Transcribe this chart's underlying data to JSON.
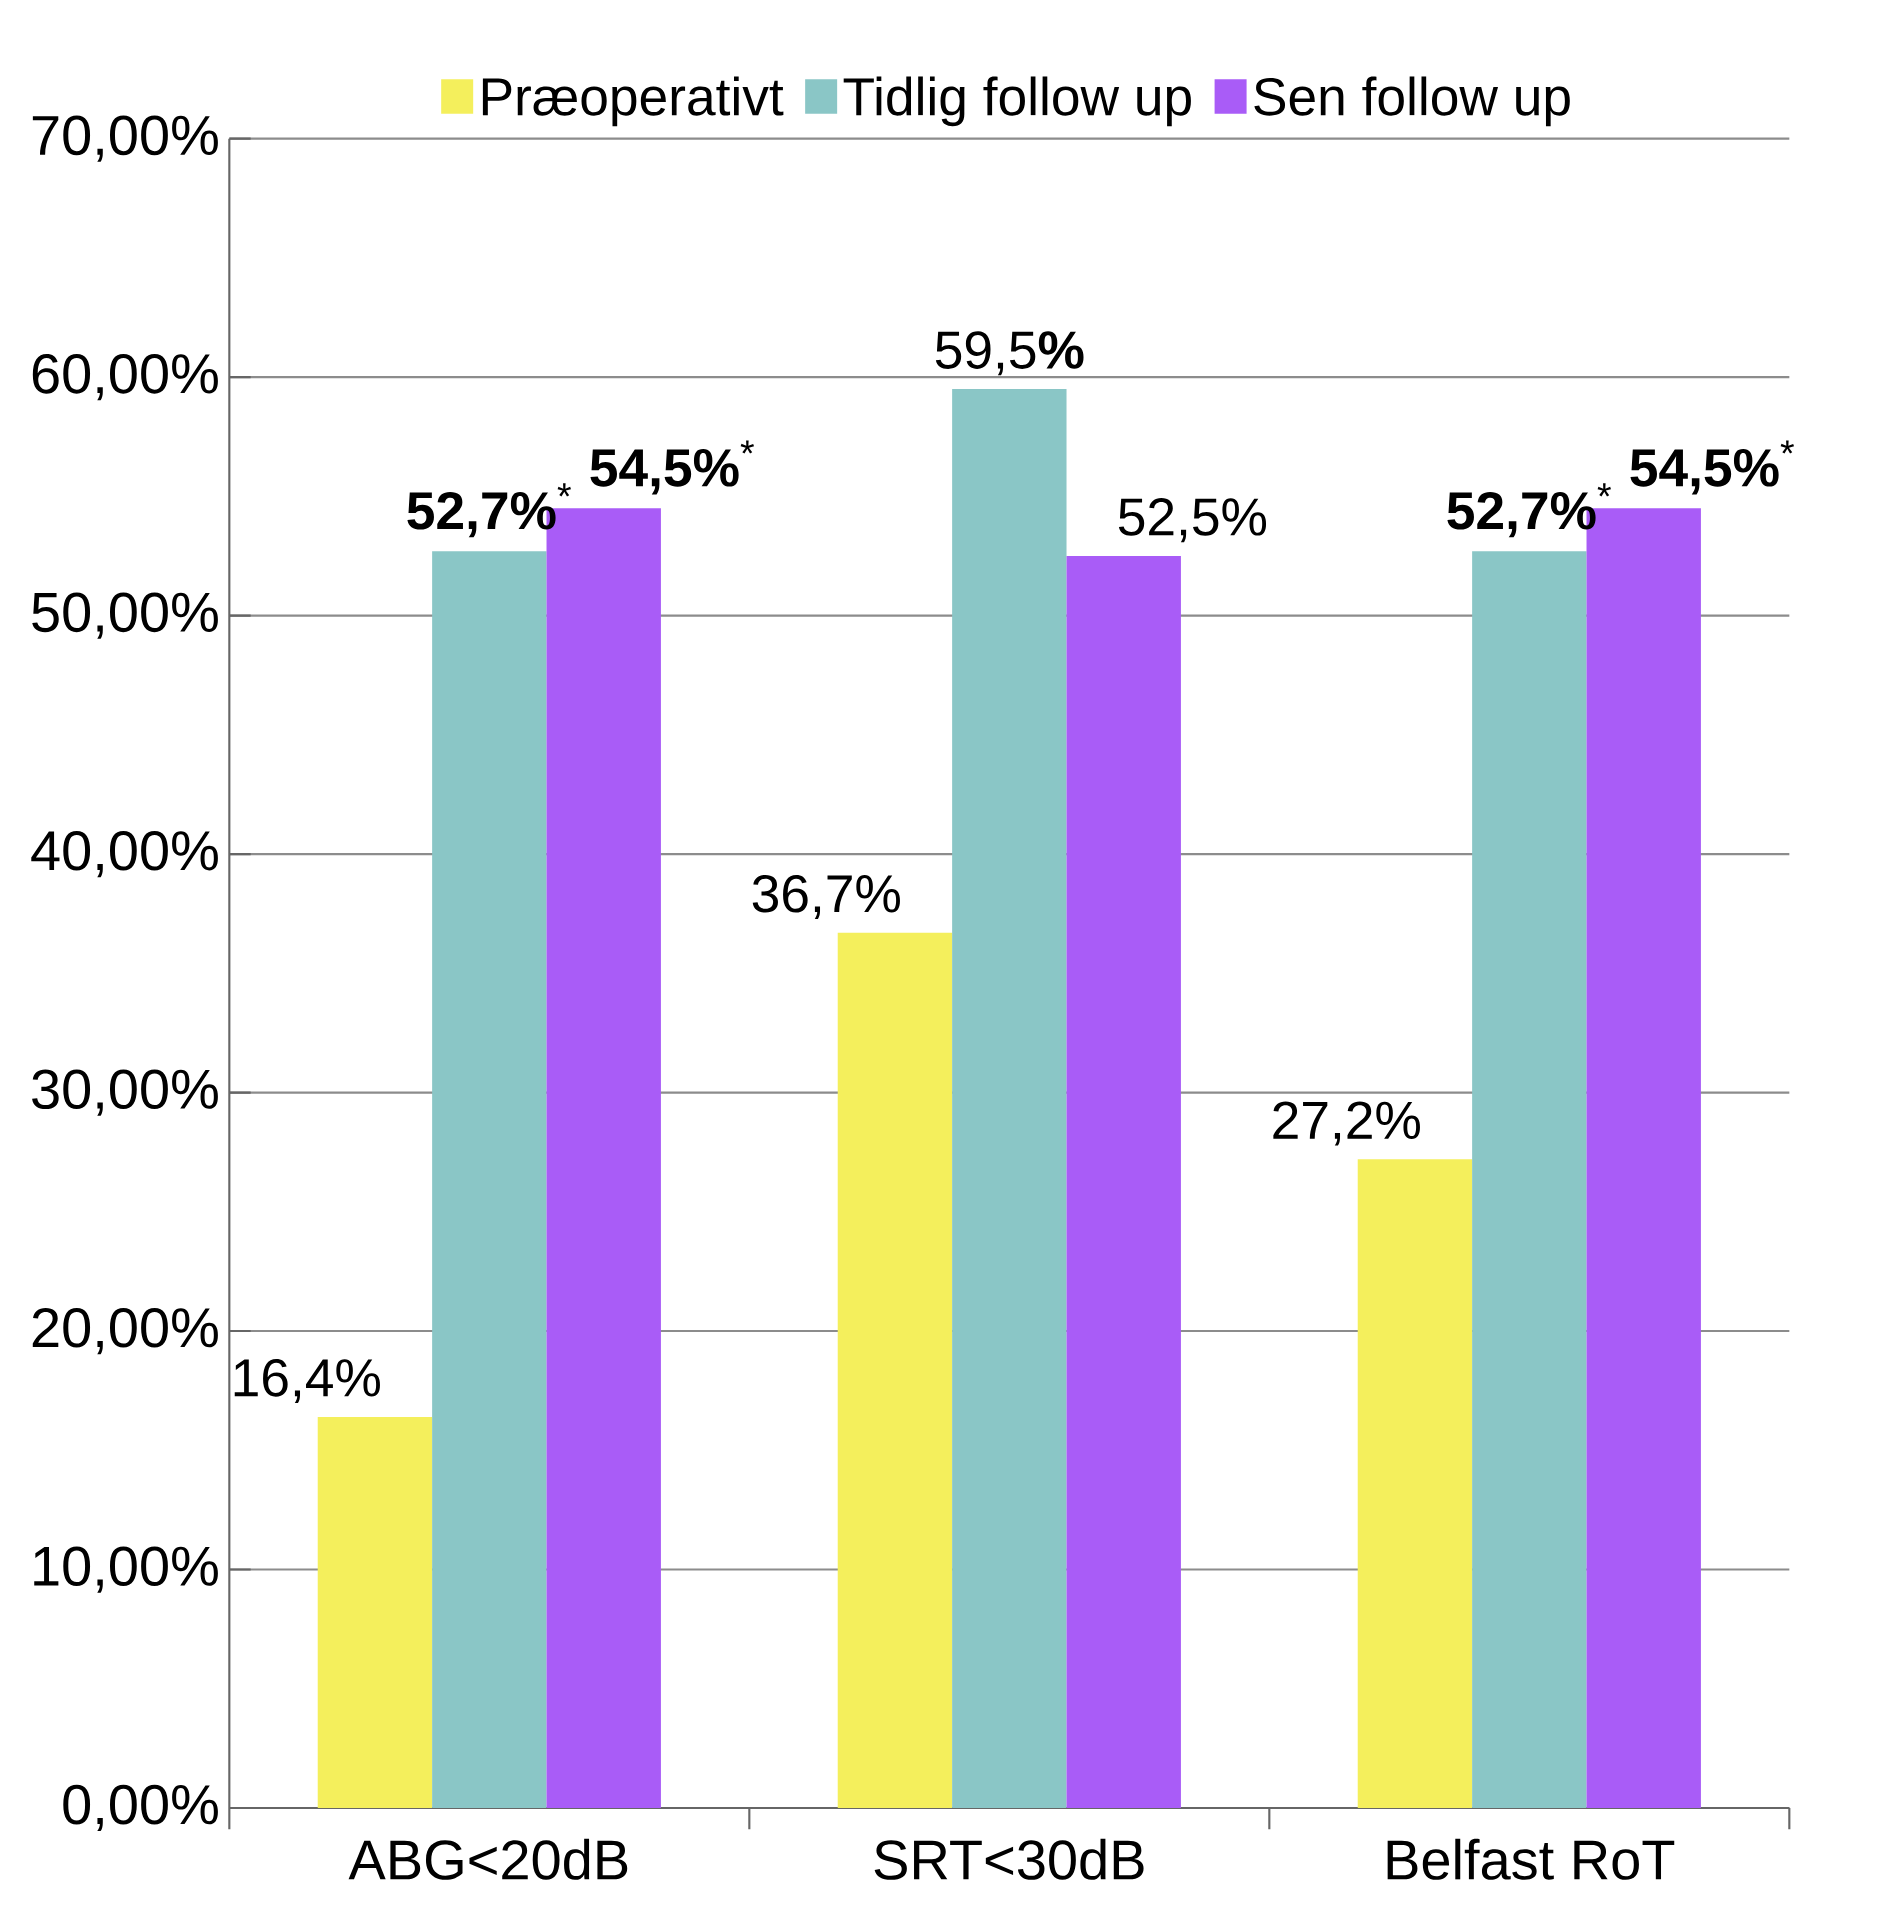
{
  "chart_data": {
    "type": "bar",
    "categories": [
      "ABG<20dB",
      "SRT<30dB",
      "Belfast RoT"
    ],
    "series": [
      {
        "name": "Præoperativt",
        "color": "#f4ef5c",
        "values": [
          16.4,
          36.7,
          27.2
        ],
        "value_labels": [
          "16,4%",
          "36,7%",
          "27,2%"
        ]
      },
      {
        "name": "Tidlig follow up",
        "color": "#8ac6c6",
        "values": [
          52.7,
          59.5,
          52.7
        ],
        "value_labels": [
          "**52,7%**$^{*}$",
          "59,5**%**",
          "**52,7%**$^{*}$"
        ]
      },
      {
        "name": "Sen follow up",
        "color": "#a95cf7",
        "values": [
          54.5,
          52.5,
          54.5
        ],
        "value_labels": [
          "**54,5%**$^{*}$",
          "52,5%",
          "**54,5%**$^{*}$"
        ]
      }
    ],
    "ylim": [
      0,
      70
    ],
    "yticks": [
      {
        "value": 0,
        "label": "0,00%"
      },
      {
        "value": 10,
        "label": "10,00%"
      },
      {
        "value": 20,
        "label": "20,00%"
      },
      {
        "value": 30,
        "label": "30,00%"
      },
      {
        "value": 40,
        "label": "40,00%"
      },
      {
        "value": 50,
        "label": "50,00%"
      },
      {
        "value": 60,
        "label": "60,00%"
      },
      {
        "value": 70,
        "label": "70,00%"
      }
    ],
    "grid": "y",
    "legend": "top"
  }
}
